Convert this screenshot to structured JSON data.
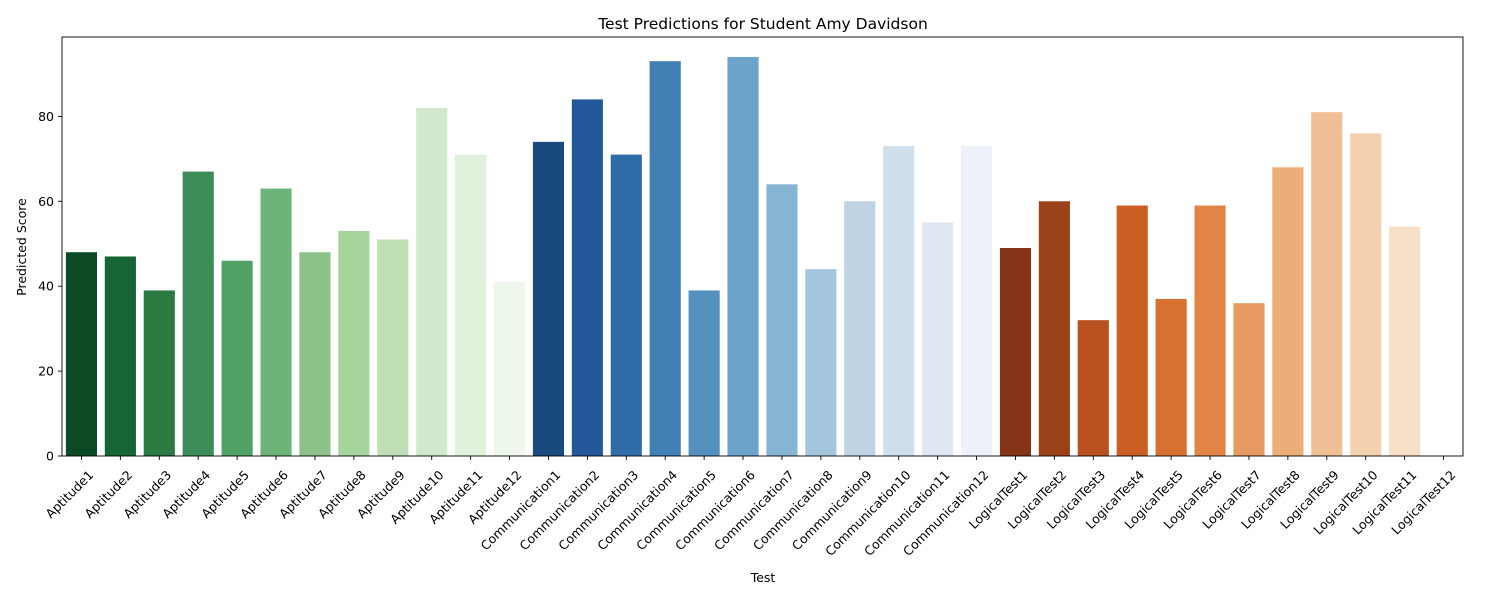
{
  "chart_data": {
    "type": "bar",
    "title": "Test Predictions for Student Amy Davidson",
    "xlabel": "Test",
    "ylabel": "Predicted Score",
    "ylim": [
      0,
      98.7
    ],
    "yticks": [
      0,
      20,
      40,
      60,
      80
    ],
    "grid": false,
    "legend": "none",
    "categories": [
      "Aptitude1",
      "Aptitude2",
      "Aptitude3",
      "Aptitude4",
      "Aptitude5",
      "Aptitude6",
      "Aptitude7",
      "Aptitude8",
      "Aptitude9",
      "Aptitude10",
      "Aptitude11",
      "Aptitude12",
      "Communication1",
      "Communication2",
      "Communication3",
      "Communication4",
      "Communication5",
      "Communication6",
      "Communication7",
      "Communication8",
      "Communication9",
      "Communication10",
      "Communication11",
      "Communication12",
      "LogicalTest1",
      "LogicalTest2",
      "LogicalTest3",
      "LogicalTest4",
      "LogicalTest5",
      "LogicalTest6",
      "LogicalTest7",
      "LogicalTest8",
      "LogicalTest9",
      "LogicalTest10",
      "LogicalTest11",
      "LogicalTest12"
    ],
    "values": [
      48,
      47,
      39,
      67,
      46,
      63,
      48,
      53,
      51,
      82,
      71,
      41,
      74,
      84,
      71,
      93,
      39,
      94,
      64,
      44,
      60,
      73,
      55,
      73,
      49,
      60,
      32,
      59,
      37,
      59,
      36,
      68,
      81,
      76,
      54,
      0
    ],
    "colors": [
      "#0b4a24",
      "#156535",
      "#2a7a42",
      "#3b8c57",
      "#51a065",
      "#6db478",
      "#8cc28a",
      "#a6d49d",
      "#bfe0b6",
      "#d1e8cc",
      "#e0f1dc",
      "#eef7ec",
      "#184a7d",
      "#22589a",
      "#306ca8",
      "#417fb5",
      "#5591bf",
      "#6ba3ca",
      "#86b4d3",
      "#a4c6dc",
      "#bfd3e4",
      "#d0dfec",
      "#dfe8f3",
      "#edf2fa",
      "#843518",
      "#9c421b",
      "#b85020",
      "#ca5e23",
      "#d87030",
      "#e28446",
      "#e79a5f",
      "#ebae78",
      "#efc097",
      "#f4d2b0",
      "#f7e0c8",
      "#fbece0"
    ]
  }
}
